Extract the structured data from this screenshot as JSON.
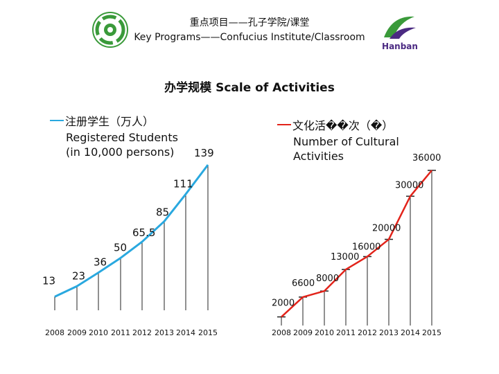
{
  "header": {
    "line1": "重点项目——孔子学院/课堂",
    "line2": "Key Programs——Confucius Institute/Classroom",
    "right_logo_text": "Hanban"
  },
  "section_title": "办学规模  Scale of Activities",
  "colors": {
    "students": "#29a8df",
    "activities": "#e2231a",
    "logo_green": "#3a9a3a",
    "hanban_purple": "#4b2a82"
  },
  "chart_data": [
    {
      "type": "line",
      "legend_zh": "注册学生（万人）",
      "legend_en": [
        "Registered Students",
        "(in 10,000 persons)"
      ],
      "categories": [
        "2008",
        "2009",
        "2010",
        "2011",
        "2012",
        "2013",
        "2014",
        "2015"
      ],
      "values": [
        13,
        23,
        36,
        50,
        65.5,
        85,
        111,
        139
      ],
      "value_labels": [
        "13",
        "23",
        "36",
        "50",
        "65.5",
        "85",
        "111",
        "139"
      ],
      "drop_lines": true
    },
    {
      "type": "line",
      "legend_zh": "文化活��次（�）",
      "legend_en": [
        "Number of Cultural",
        "Activities"
      ],
      "categories": [
        "2008",
        "2009",
        "2010",
        "2011",
        "2012",
        "2013",
        "2014",
        "2015"
      ],
      "values": [
        2000,
        6600,
        8000,
        13000,
        16000,
        20000,
        30000,
        36000
      ],
      "value_labels": [
        "2000",
        "6600",
        "8000",
        "13000",
        "16000",
        "20000",
        "30000",
        "36000"
      ],
      "drop_lines": true,
      "markers": "dash"
    }
  ]
}
